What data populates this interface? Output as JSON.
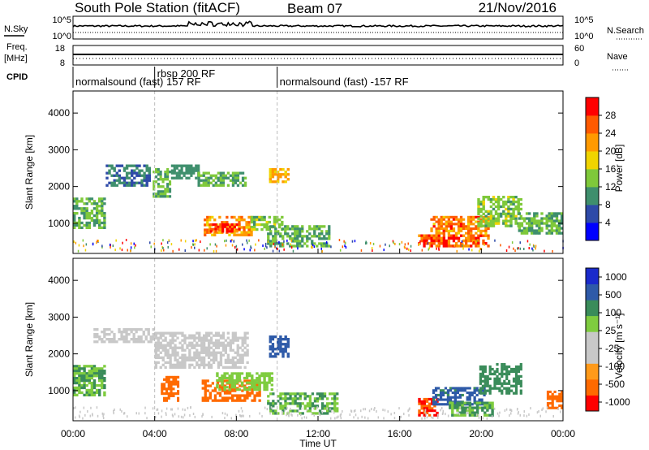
{
  "header": {
    "station": "South Pole Station (fitACF)",
    "beam": "Beam 07",
    "date": "21/Nov/2016"
  },
  "top_panels": {
    "nsky_label": "N.Sky",
    "nsky_ticks": [
      "10^5",
      "10^0"
    ],
    "nsearch_label": "N.Search",
    "nsearch_ticks": [
      "10^5",
      "10^0"
    ],
    "freq_label_1": "Freq.",
    "freq_label_2": "[MHz]",
    "freq_ticks": [
      "18",
      "8"
    ],
    "nave_label": "Nave",
    "nave_ticks": [
      "60",
      "0"
    ],
    "cpid_label": "CPID",
    "cpid_segments": [
      {
        "label": "normalsound (fast) 157 RF",
        "start_h": 0.0,
        "end_h": 4.0
      },
      {
        "label": "rbsp 200 RF",
        "start_h": 4.0,
        "end_h": 10.0
      },
      {
        "label": "normalsound (fast) -157 RF",
        "start_h": 10.0,
        "end_h": 24.0
      }
    ]
  },
  "axes": {
    "xlabel": "Time UT",
    "ylabel": "Slant Range [km]",
    "xticks": [
      "00:00",
      "04:00",
      "08:00",
      "12:00",
      "16:00",
      "20:00",
      "00:00"
    ],
    "yticks": [
      "1000",
      "2000",
      "3000",
      "4000"
    ]
  },
  "colors": {
    "power": [
      "#0000ff",
      "#2e4aa8",
      "#3f8f6d",
      "#7fc93a",
      "#f0d400",
      "#ff9a00",
      "#ff5a00",
      "#ff0000"
    ],
    "velocity": [
      "#ff0000",
      "#ff6a00",
      "#ff9a1a",
      "#c8c8c8",
      "#c8c8c8",
      "#7fcc3f",
      "#3a8c5a",
      "#2e5aa8",
      "#1a2acc"
    ]
  },
  "chart_data": [
    {
      "type": "heatmap",
      "panel": "power",
      "x_unit": "hours UT",
      "y_unit": "km",
      "xlim": [
        0,
        24
      ],
      "ylim": [
        180,
        4600
      ],
      "colorbar": {
        "label": "Power [dB]",
        "ticks": [
          "4",
          "8",
          "12",
          "16",
          "20",
          "24",
          "28"
        ],
        "min": 0,
        "max": 32
      },
      "regions": [
        {
          "t0": 0.0,
          "t1": 1.6,
          "r0": 850,
          "r1": 1700,
          "val": 12
        },
        {
          "t0": 1.6,
          "t1": 3.8,
          "r0": 2000,
          "r1": 2600,
          "val": 8
        },
        {
          "t0": 3.9,
          "t1": 4.8,
          "r0": 1700,
          "r1": 2500,
          "val": 12
        },
        {
          "t0": 4.8,
          "t1": 6.2,
          "r0": 2200,
          "r1": 2600,
          "val": 10
        },
        {
          "t0": 6.1,
          "t1": 8.5,
          "r0": 2000,
          "r1": 2400,
          "val": 12
        },
        {
          "t0": 6.4,
          "t1": 8.8,
          "r0": 650,
          "r1": 1200,
          "val": 22
        },
        {
          "t0": 6.7,
          "t1": 8.2,
          "r0": 750,
          "r1": 1000,
          "val": 28
        },
        {
          "t0": 8.7,
          "t1": 10.3,
          "r0": 800,
          "r1": 1200,
          "val": 14
        },
        {
          "t0": 9.6,
          "t1": 10.6,
          "r0": 2100,
          "r1": 2500,
          "val": 20
        },
        {
          "t0": 9.5,
          "t1": 12.6,
          "r0": 350,
          "r1": 950,
          "val": 12
        },
        {
          "t0": 16.9,
          "t1": 20.4,
          "r0": 350,
          "r1": 700,
          "val": 26
        },
        {
          "t0": 17.5,
          "t1": 20.4,
          "r0": 700,
          "r1": 1200,
          "val": 24
        },
        {
          "t0": 19.8,
          "t1": 22.0,
          "r0": 900,
          "r1": 1750,
          "val": 14
        },
        {
          "t0": 21.8,
          "t1": 24.0,
          "r0": 700,
          "r1": 1300,
          "val": 12
        }
      ]
    },
    {
      "type": "heatmap",
      "panel": "velocity",
      "x_unit": "hours UT",
      "y_unit": "km",
      "xlim": [
        0,
        24
      ],
      "ylim": [
        180,
        4600
      ],
      "colorbar": {
        "label": "Velocity [m s⁻¹]",
        "ticks": [
          "1000",
          "500",
          "100",
          "25",
          "-25",
          "-100",
          "-500",
          "-1000"
        ]
      },
      "regions": [
        {
          "t0": 0.0,
          "t1": 1.6,
          "r0": 850,
          "r1": 1700,
          "val": 100
        },
        {
          "t0": 1.0,
          "t1": 4.0,
          "r0": 2300,
          "r1": 2700,
          "val": 0
        },
        {
          "t0": 4.0,
          "t1": 8.6,
          "r0": 1600,
          "r1": 2600,
          "val": 0
        },
        {
          "t0": 4.3,
          "t1": 5.2,
          "r0": 700,
          "r1": 1400,
          "val": -300
        },
        {
          "t0": 6.3,
          "t1": 9.2,
          "r0": 700,
          "r1": 1300,
          "val": -300
        },
        {
          "t0": 7.0,
          "t1": 9.8,
          "r0": 1000,
          "r1": 1500,
          "val": 60
        },
        {
          "t0": 9.6,
          "t1": 10.6,
          "r0": 1900,
          "r1": 2500,
          "val": 800
        },
        {
          "t0": 9.5,
          "t1": 13.0,
          "r0": 350,
          "r1": 950,
          "val": 100
        },
        {
          "t0": 16.9,
          "t1": 17.9,
          "r0": 300,
          "r1": 800,
          "val": -500
        },
        {
          "t0": 17.6,
          "t1": 20.2,
          "r0": 600,
          "r1": 1100,
          "val": 600
        },
        {
          "t0": 18.4,
          "t1": 20.6,
          "r0": 300,
          "r1": 700,
          "val": 100
        },
        {
          "t0": 19.9,
          "t1": 22.0,
          "r0": 900,
          "r1": 1750,
          "val": 300
        },
        {
          "t0": 23.2,
          "t1": 24.0,
          "r0": 500,
          "r1": 1000,
          "val": -300
        }
      ]
    }
  ]
}
